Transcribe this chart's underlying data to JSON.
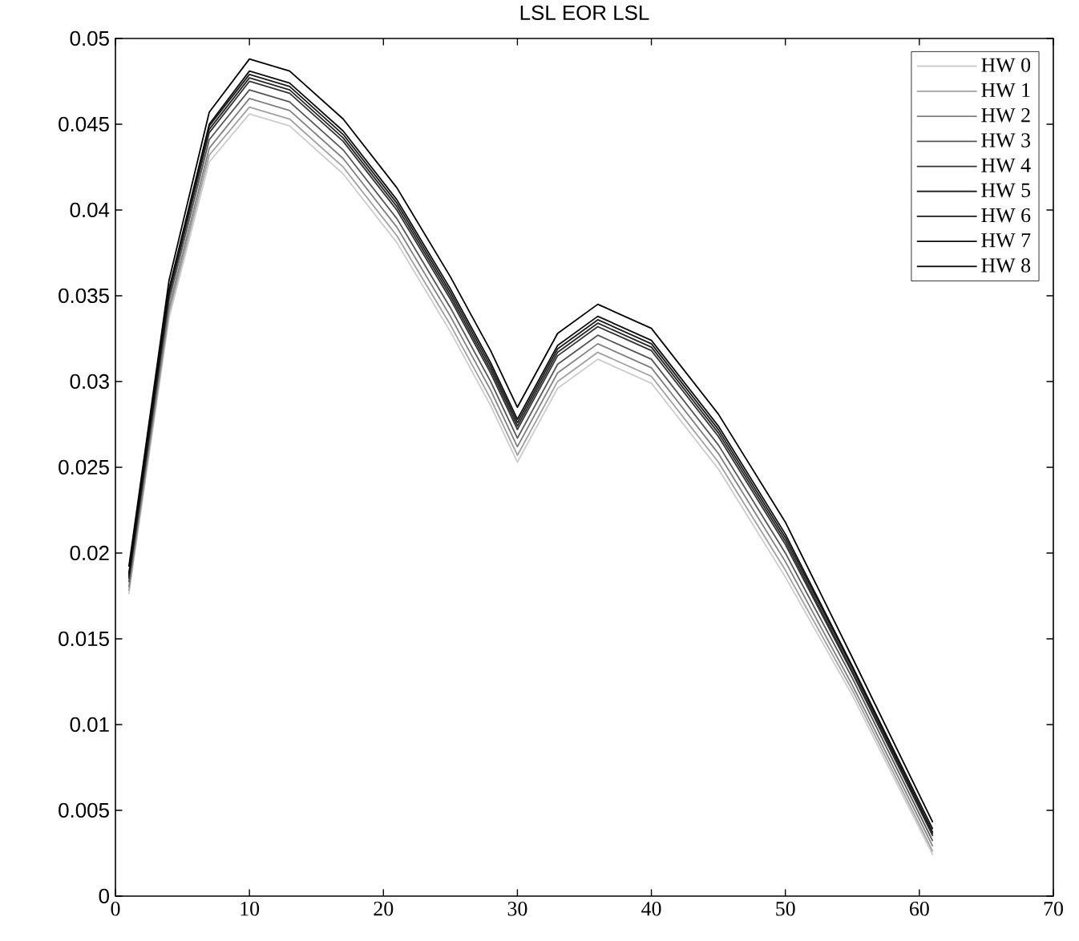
{
  "chart_data": {
    "type": "line",
    "title": "LSL EOR LSL",
    "x": [
      1,
      4,
      7,
      10,
      13,
      17,
      21,
      25,
      28,
      30,
      33,
      36,
      40,
      45,
      50,
      55,
      61
    ],
    "series": [
      {
        "name": "HW 0",
        "color": "#cccccc",
        "values": [
          0.0176,
          0.0337,
          0.0428,
          0.0456,
          0.0449,
          0.0421,
          0.0381,
          0.0329,
          0.0286,
          0.0253,
          0.0296,
          0.0313,
          0.0299,
          0.0249,
          0.0186,
          0.0117,
          0.0024
        ]
      },
      {
        "name": "HW 1",
        "color": "#a0a0a0",
        "values": [
          0.0178,
          0.034,
          0.0432,
          0.046,
          0.0453,
          0.0425,
          0.0385,
          0.0333,
          0.029,
          0.0257,
          0.03,
          0.0317,
          0.0303,
          0.0253,
          0.019,
          0.012,
          0.0026
        ]
      },
      {
        "name": "HW 2",
        "color": "#808080",
        "values": [
          0.018,
          0.0343,
          0.0436,
          0.0465,
          0.0458,
          0.043,
          0.039,
          0.0338,
          0.0295,
          0.0262,
          0.0305,
          0.0322,
          0.0308,
          0.0258,
          0.0195,
          0.0123,
          0.0029
        ]
      },
      {
        "name": "HW 3",
        "color": "#555555",
        "values": [
          0.0183,
          0.0347,
          0.0441,
          0.047,
          0.0463,
          0.0435,
          0.0395,
          0.0343,
          0.03,
          0.0267,
          0.031,
          0.0327,
          0.0313,
          0.0263,
          0.02,
          0.0127,
          0.0032
        ]
      },
      {
        "name": "HW 4",
        "color": "#333333",
        "values": [
          0.0185,
          0.035,
          0.0445,
          0.0475,
          0.0468,
          0.044,
          0.04,
          0.0348,
          0.0305,
          0.0272,
          0.0315,
          0.0332,
          0.0318,
          0.0268,
          0.0205,
          0.013,
          0.0035
        ]
      },
      {
        "name": "HW 5",
        "color": "#262626",
        "values": [
          0.0186,
          0.0351,
          0.0447,
          0.0477,
          0.047,
          0.0442,
          0.0402,
          0.035,
          0.0307,
          0.0274,
          0.0317,
          0.0334,
          0.032,
          0.027,
          0.0207,
          0.0131,
          0.0036
        ]
      },
      {
        "name": "HW 6",
        "color": "#1a1a1a",
        "values": [
          0.0187,
          0.0353,
          0.0449,
          0.0479,
          0.0472,
          0.0444,
          0.0404,
          0.0352,
          0.0309,
          0.0276,
          0.0319,
          0.0336,
          0.0322,
          0.0272,
          0.0209,
          0.0133,
          0.0037
        ]
      },
      {
        "name": "HW 7",
        "color": "#0d0d0d",
        "values": [
          0.0188,
          0.0354,
          0.045,
          0.0481,
          0.0474,
          0.0446,
          0.0406,
          0.0354,
          0.0311,
          0.0278,
          0.0321,
          0.0338,
          0.0324,
          0.0274,
          0.0211,
          0.0134,
          0.0039
        ]
      },
      {
        "name": "HW 8",
        "color": "#000000",
        "values": [
          0.0192,
          0.0359,
          0.0457,
          0.0488,
          0.0481,
          0.0453,
          0.0413,
          0.0361,
          0.0318,
          0.0285,
          0.0328,
          0.0345,
          0.0331,
          0.0281,
          0.0218,
          0.0139,
          0.0043
        ]
      }
    ],
    "xlim": [
      0,
      70
    ],
    "ylim": [
      0,
      0.05
    ],
    "xticks": [
      0,
      10,
      20,
      30,
      40,
      50,
      60,
      70
    ],
    "yticks": [
      0,
      0.005,
      0.01,
      0.015,
      0.02,
      0.025,
      0.03,
      0.035,
      0.04,
      0.045,
      0.05
    ],
    "grid": false,
    "legend": "top right",
    "marker": "none",
    "line_style": "solid"
  }
}
